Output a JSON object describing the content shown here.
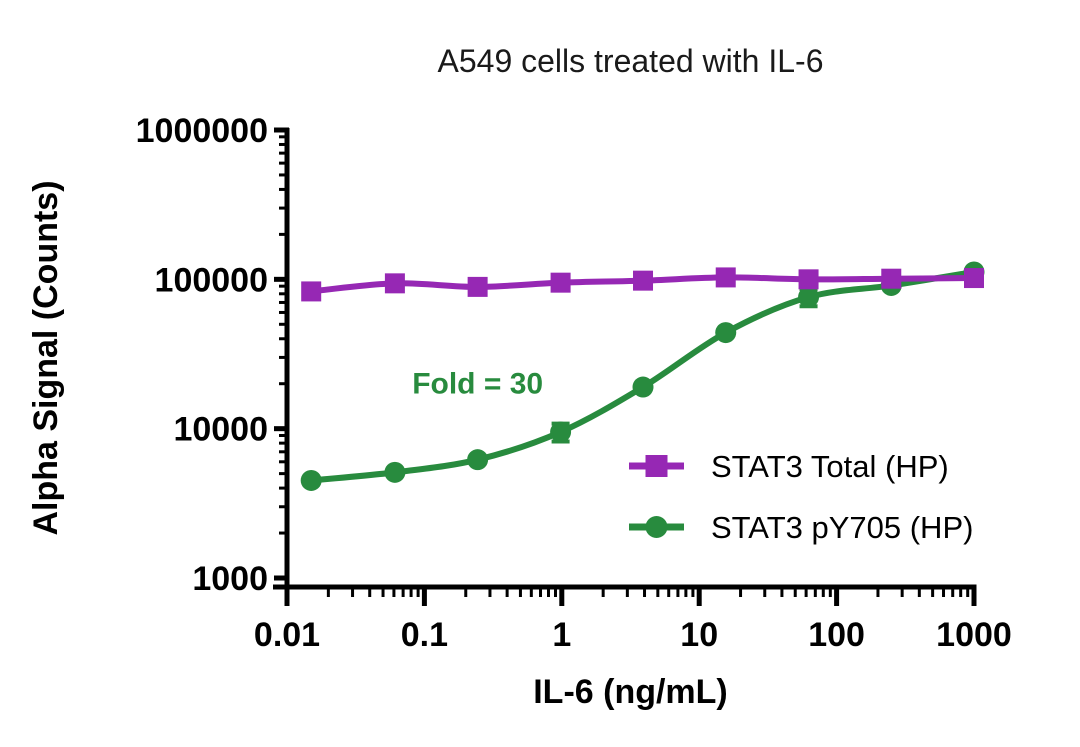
{
  "chart_data": {
    "type": "line",
    "title": "A549 cells treated with IL-6",
    "xlabel": "IL-6 (ng/mL)",
    "ylabel": "Alpha Signal (Counts)",
    "x_scale": "log",
    "y_scale": "log",
    "xlim": [
      0.01,
      1000
    ],
    "ylim": [
      1000,
      1000000
    ],
    "x_tick_labels": [
      "0.01",
      "0.1",
      "1",
      "10",
      "100",
      "1000"
    ],
    "y_tick_labels": [
      "1000",
      "10000",
      "100000",
      "1000000"
    ],
    "grid": false,
    "legend_position": "inside-right",
    "x": [
      0.015,
      0.061,
      0.244,
      0.98,
      3.9,
      15.6,
      62.5,
      250,
      1000
    ],
    "series": [
      {
        "name": "STAT3 Total (HP)",
        "marker": "square",
        "color": "#9628B4",
        "values": [
          83000,
          94000,
          89000,
          95000,
          98000,
          103000,
          100000,
          101000,
          102000
        ],
        "errors": [
          0,
          0,
          0,
          0,
          0,
          0,
          0,
          0,
          0
        ]
      },
      {
        "name": "STAT3 pY705 (HP)",
        "marker": "circle",
        "color": "#288B3E",
        "values": [
          4500,
          5100,
          6200,
          9500,
          19000,
          44000,
          76000,
          91000,
          112000
        ],
        "errors": [
          0,
          0,
          0,
          1300,
          0,
          0,
          10000,
          0,
          0
        ]
      }
    ],
    "annotation": {
      "text": "Fold = 30",
      "color": "#288B3E",
      "x": 0.244,
      "y": 20000
    },
    "axis_color": "#000000",
    "text_color": "#000000"
  }
}
